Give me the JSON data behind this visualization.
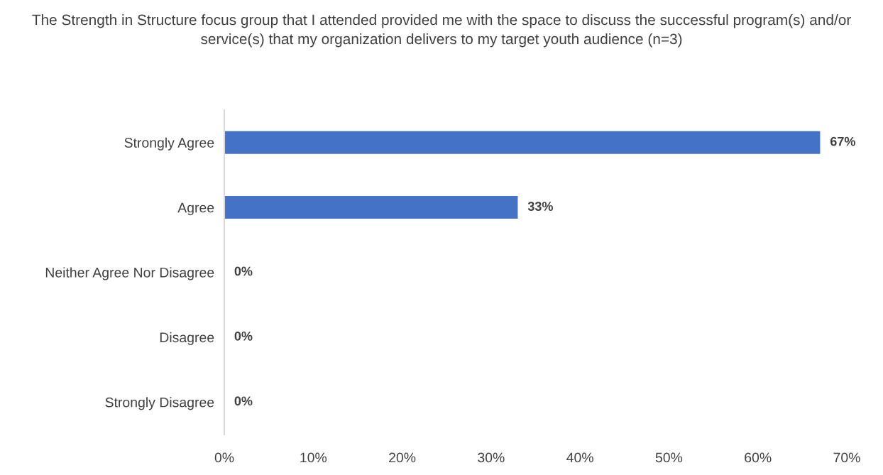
{
  "chart_data": {
    "type": "bar",
    "orientation": "horizontal",
    "title": "The Strength in Structure focus group that I attended provided me with the space to discuss the successful program(s) and/or service(s) that my organization delivers to my target youth audience (n=3)",
    "categories": [
      "Strongly Agree",
      "Agree",
      "Neither Agree Nor Disagree",
      "Disagree",
      "Strongly Disagree"
    ],
    "values": [
      67,
      33,
      0,
      0,
      0
    ],
    "value_labels": [
      "67%",
      "33%",
      "0%",
      "0%",
      "0%"
    ],
    "color": "#4472c4",
    "xlim": [
      0,
      70
    ],
    "xticks": [
      {
        "value": 0,
        "label": "0%"
      },
      {
        "value": 10,
        "label": "10%"
      },
      {
        "value": 20,
        "label": "20%"
      },
      {
        "value": 30,
        "label": "30%"
      },
      {
        "value": 40,
        "label": "40%"
      },
      {
        "value": 50,
        "label": "50%"
      },
      {
        "value": 60,
        "label": "60%"
      },
      {
        "value": 70,
        "label": "70%"
      }
    ],
    "grid": false,
    "legend": false
  }
}
